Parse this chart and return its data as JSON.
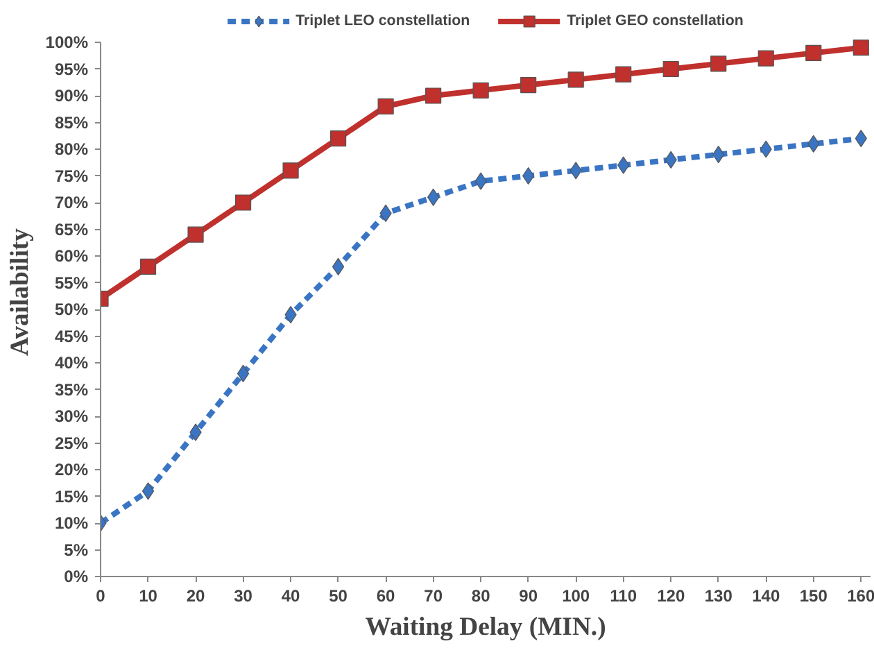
{
  "chart_data": {
    "type": "line",
    "xlabel": "Waiting Delay (MIN.)",
    "ylabel": "Availability",
    "x": [
      0,
      10,
      20,
      30,
      40,
      50,
      60,
      70,
      80,
      90,
      100,
      110,
      120,
      130,
      140,
      150,
      160
    ],
    "series": [
      {
        "name": "Triplet LEO constellation",
        "color": "#3a75c4",
        "marker": "diamond",
        "line_style": "dashed",
        "values": [
          10,
          16,
          27,
          38,
          49,
          58,
          68,
          71,
          74,
          75,
          76,
          77,
          78,
          79,
          80,
          81,
          82
        ]
      },
      {
        "name": "Triplet GEO constellation",
        "color": "#c0302c",
        "marker": "square",
        "line_style": "solid",
        "values": [
          52,
          58,
          64,
          70,
          76,
          82,
          88,
          90,
          91,
          92,
          93,
          94,
          95,
          96,
          97,
          98,
          99
        ]
      }
    ],
    "xlim": [
      0,
      162
    ],
    "ylim": [
      0,
      100
    ],
    "xticks": [
      0,
      10,
      20,
      30,
      40,
      50,
      60,
      70,
      80,
      90,
      100,
      110,
      120,
      130,
      140,
      150,
      160
    ],
    "yticks": [
      {
        "value": 0,
        "label": "0%"
      },
      {
        "value": 5,
        "label": "5%"
      },
      {
        "value": 10,
        "label": "10%"
      },
      {
        "value": 15,
        "label": "15%"
      },
      {
        "value": 20,
        "label": "20%"
      },
      {
        "value": 25,
        "label": "25%"
      },
      {
        "value": 30,
        "label": "30%"
      },
      {
        "value": 35,
        "label": "35%"
      },
      {
        "value": 40,
        "label": "40%"
      },
      {
        "value": 45,
        "label": "45%"
      },
      {
        "value": 50,
        "label": "50%"
      },
      {
        "value": 55,
        "label": "55%"
      },
      {
        "value": 60,
        "label": "60%"
      },
      {
        "value": 65,
        "label": "65%"
      },
      {
        "value": 70,
        "label": "70%"
      },
      {
        "value": 75,
        "label": "75%"
      },
      {
        "value": 80,
        "label": "80%"
      },
      {
        "value": 85,
        "label": "85%"
      },
      {
        "value": 90,
        "label": "90%"
      },
      {
        "value": 95,
        "label": "95%"
      },
      {
        "value": 100,
        "label": "100%"
      }
    ],
    "grid": false,
    "legend": "top"
  }
}
